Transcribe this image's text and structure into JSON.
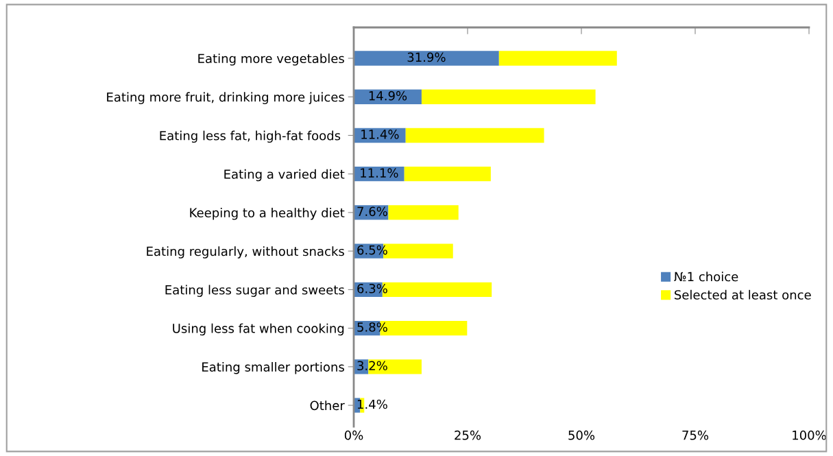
{
  "chart_data": {
    "type": "bar",
    "orientation": "horizontal",
    "stacked": true,
    "categories": [
      "Eating more vegetables",
      "Eating more fruit, drinking more juices",
      "Eating less fat, high-fat foods ",
      "Eating a varied diet",
      "Keeping to a healthy diet",
      "Eating regularly, without snacks",
      "Eating less sugar and sweets",
      "Using less fat when cooking",
      "Eating smaller portions",
      "Other"
    ],
    "series": [
      {
        "name": "№1 choice",
        "color": "#4f81bd",
        "values": [
          31.9,
          14.9,
          11.4,
          11.1,
          7.6,
          6.5,
          6.3,
          5.8,
          3.2,
          1.4
        ],
        "value_labels": [
          "31.9%",
          "14.9%",
          "11.4%",
          "11.1%",
          "7.6%",
          "6.5%",
          "6.3%",
          "5.8%",
          "3.2%",
          "1.4%"
        ]
      },
      {
        "name": "Selected at least once",
        "color": "#ffff00",
        "values": [
          25.9,
          38.2,
          30.4,
          19.0,
          15.4,
          15.3,
          24.0,
          19.1,
          11.7,
          0.9
        ]
      }
    ],
    "xlim": [
      0,
      100
    ],
    "xticks": [
      {
        "value": 0,
        "label": "0%"
      },
      {
        "value": 25,
        "label": "25%"
      },
      {
        "value": 50,
        "label": "50%"
      },
      {
        "value": 75,
        "label": "75%"
      },
      {
        "value": 100,
        "label": "100%"
      }
    ],
    "grid": false,
    "legend": "right"
  }
}
